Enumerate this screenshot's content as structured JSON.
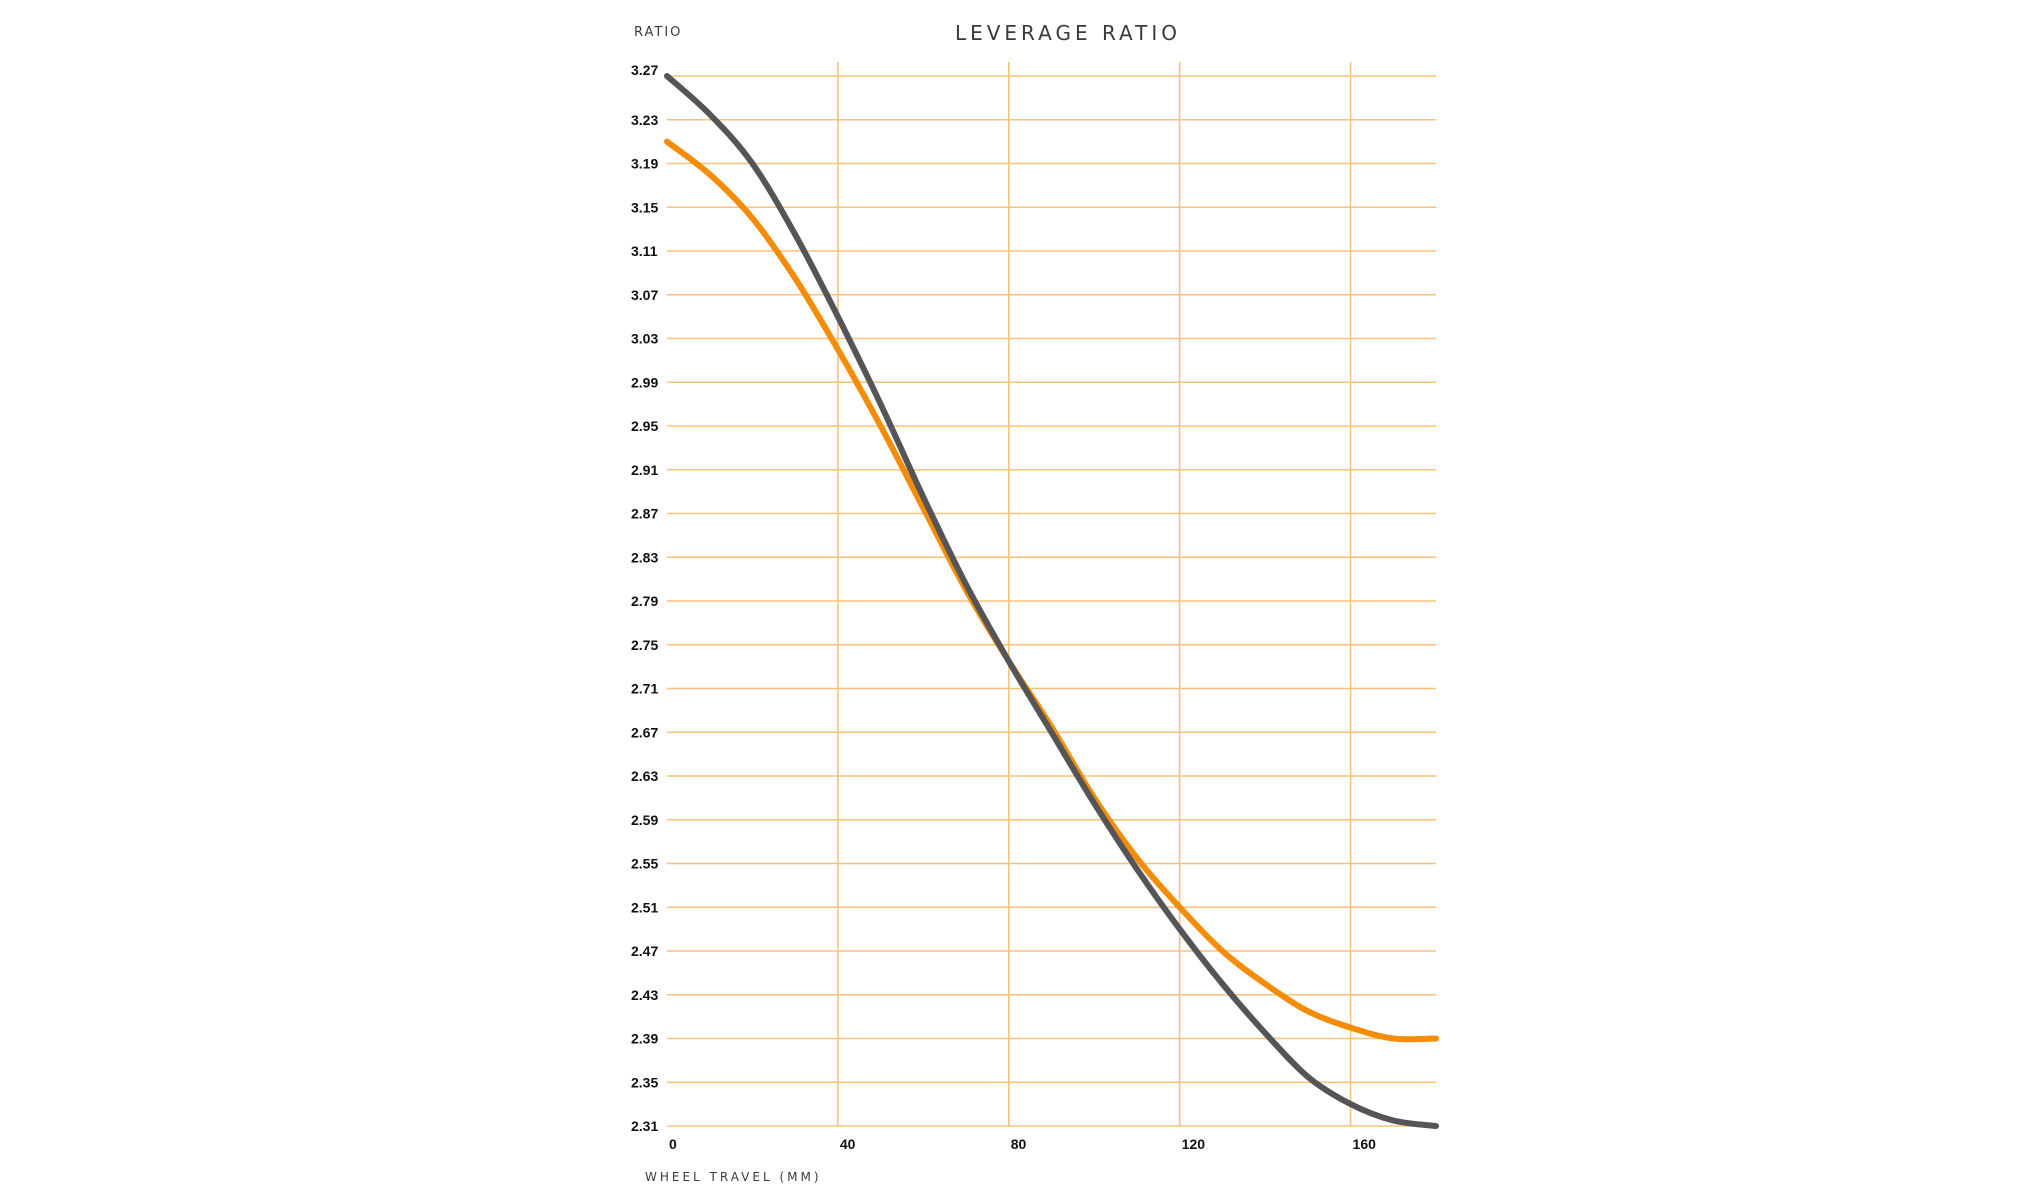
{
  "chart_data": {
    "type": "line",
    "title": "LEVERAGE RATIO",
    "ylabel": "RATIO",
    "xlabel": "WHEEL TRAVEL (MM)",
    "xlim": [
      0,
      180
    ],
    "ylim": [
      2.31,
      3.27
    ],
    "grid": true,
    "colors": {
      "grid": "#f7c27a",
      "background": "#ffffff"
    },
    "y_ticks": [
      "3.27",
      "3.23",
      "3.19",
      "3.15",
      "3.11",
      "3.07",
      "3.03",
      "2.99",
      "2.95",
      "2.91",
      "2.87",
      "2.83",
      "2.79",
      "2.75",
      "2.71",
      "2.67",
      "2.63",
      "2.59",
      "2.55",
      "2.51",
      "2.47",
      "2.43",
      "2.39",
      "2.35",
      "2.31"
    ],
    "x_ticks": [
      "0",
      "40",
      "80",
      "120",
      "160"
    ],
    "series": [
      {
        "color": "#f48c06",
        "x": [
          0,
          10,
          20,
          30,
          40,
          50,
          60,
          70,
          80,
          90,
          100,
          110,
          120,
          130,
          140,
          150,
          160,
          170,
          180
        ],
        "y": [
          3.21,
          3.18,
          3.14,
          3.085,
          3.02,
          2.95,
          2.875,
          2.8,
          2.735,
          2.675,
          2.61,
          2.555,
          2.51,
          2.47,
          2.44,
          2.415,
          2.4,
          2.39,
          2.39
        ]
      },
      {
        "color": "#555558",
        "x": [
          0,
          10,
          20,
          30,
          40,
          50,
          60,
          70,
          80,
          90,
          100,
          110,
          120,
          130,
          140,
          150,
          160,
          170,
          180
        ],
        "y": [
          3.27,
          3.235,
          3.19,
          3.125,
          3.05,
          2.97,
          2.885,
          2.805,
          2.735,
          2.67,
          2.605,
          2.545,
          2.49,
          2.44,
          2.395,
          2.355,
          2.33,
          2.315,
          2.31
        ]
      }
    ]
  }
}
